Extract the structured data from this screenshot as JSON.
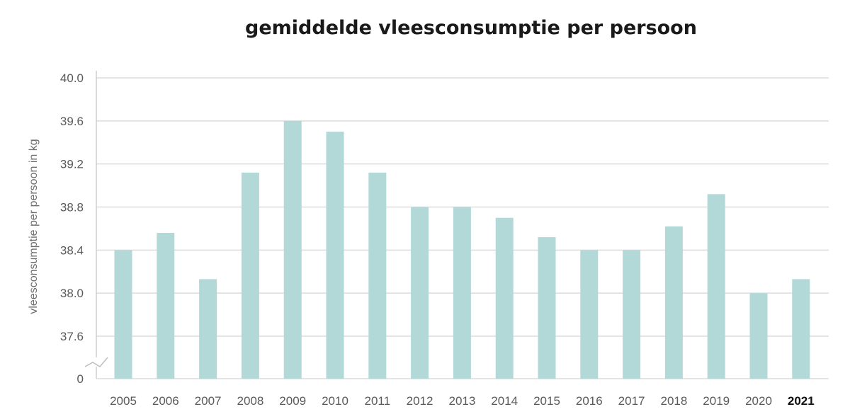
{
  "chart_data": {
    "type": "bar",
    "title": "gemiddelde vleesconsumptie per persoon",
    "xlabel": "",
    "ylabel": "vleesconsumptie per persoon in kg",
    "categories": [
      "2005",
      "2006",
      "2007",
      "2008",
      "2009",
      "2010",
      "2011",
      "2012",
      "2013",
      "2014",
      "2015",
      "2016",
      "2017",
      "2018",
      "2019",
      "2020",
      "2021"
    ],
    "values": [
      38.4,
      38.56,
      38.13,
      39.12,
      39.6,
      39.5,
      39.12,
      38.8,
      38.8,
      38.7,
      38.52,
      38.4,
      38.4,
      38.62,
      38.92,
      38.0,
      38.13
    ],
    "highlight_category": "2021",
    "ylim": [
      37.6,
      40.0
    ],
    "y_ticks": [
      "40.0",
      "39.6",
      "39.2",
      "38.8",
      "38.4",
      "38.0",
      "37.6",
      "0"
    ],
    "y_axis_break": true,
    "grid": true,
    "colors": {
      "bar": "#b3d8d8",
      "grid": "#dcdcdc",
      "axis": "#cfcfcf"
    }
  }
}
